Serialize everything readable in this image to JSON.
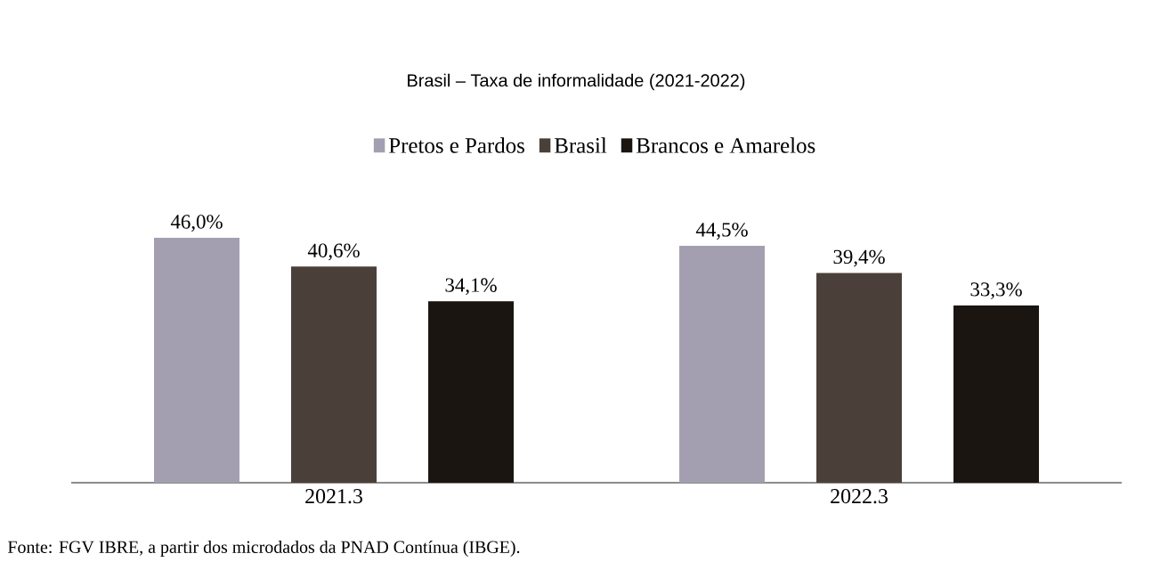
{
  "chart_data": {
    "type": "bar",
    "title": "Brasil – Taxa de informalidade (2021-2022)",
    "categories": [
      "2021.3",
      "2022.3"
    ],
    "series": [
      {
        "name": "Pretos e Pardos",
        "color": "#a49fb0",
        "values": [
          46.0,
          44.5
        ],
        "value_labels": [
          "46,0%",
          "44,5%"
        ]
      },
      {
        "name": "Brasil",
        "color": "#4b4039",
        "values": [
          40.6,
          39.4
        ],
        "value_labels": [
          "40,6%",
          "39,4%"
        ]
      },
      {
        "name": "Brancos e Amarelos",
        "color": "#1a1511",
        "values": [
          34.1,
          33.3
        ],
        "value_labels": [
          "34,1%",
          "33,3%"
        ]
      }
    ],
    "legend": "top",
    "annotations": [
      "Fonte: FGV IBRE, a partir dos microdados da PNAD Contínua (IBGE)."
    ]
  }
}
